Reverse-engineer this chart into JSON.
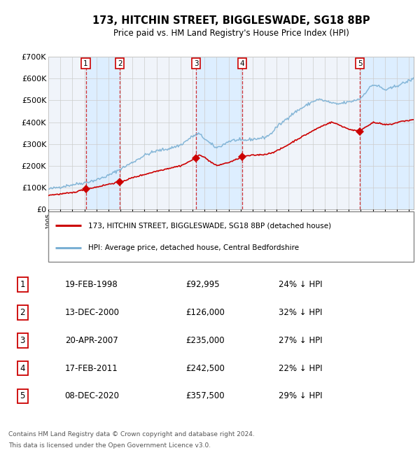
{
  "title": "173, HITCHIN STREET, BIGGLESWADE, SG18 8BP",
  "subtitle": "Price paid vs. HM Land Registry's House Price Index (HPI)",
  "footer1": "Contains HM Land Registry data © Crown copyright and database right 2024.",
  "footer2": "This data is licensed under the Open Government Licence v3.0.",
  "legend_line1": "173, HITCHIN STREET, BIGGLESWADE, SG18 8BP (detached house)",
  "legend_line2": "HPI: Average price, detached house, Central Bedfordshire",
  "sales": [
    {
      "num": 1,
      "date": "19-FEB-1998",
      "price": 92995,
      "pct": "24% ↓ HPI",
      "year": 1998.12
    },
    {
      "num": 2,
      "date": "13-DEC-2000",
      "price": 126000,
      "pct": "32% ↓ HPI",
      "year": 2000.95
    },
    {
      "num": 3,
      "date": "20-APR-2007",
      "price": 235000,
      "pct": "27% ↓ HPI",
      "year": 2007.3
    },
    {
      "num": 4,
      "date": "17-FEB-2011",
      "price": 242500,
      "pct": "22% ↓ HPI",
      "year": 2011.12
    },
    {
      "num": 5,
      "date": "08-DEC-2020",
      "price": 357500,
      "pct": "29% ↓ HPI",
      "year": 2020.93
    }
  ],
  "hpi_line_color": "#7ab0d4",
  "sale_color": "#cc0000",
  "vline_color": "#cc0000",
  "shade_color": "#ddeeff",
  "ylim": [
    0,
    700000
  ],
  "xlim_start": 1995.0,
  "xlim_end": 2025.4,
  "yticks": [
    0,
    100000,
    200000,
    300000,
    400000,
    500000,
    600000,
    700000
  ],
  "ytick_labels": [
    "£0",
    "£100K",
    "£200K",
    "£300K",
    "£400K",
    "£500K",
    "£600K",
    "£700K"
  ],
  "background_color": "#ffffff",
  "chart_bg_color": "#f0f4fa",
  "hpi_anchors": [
    [
      1995.0,
      92000
    ],
    [
      1996.0,
      103000
    ],
    [
      1997.0,
      113000
    ],
    [
      1998.0,
      122000
    ],
    [
      1999.0,
      135000
    ],
    [
      2000.0,
      155000
    ],
    [
      2001.0,
      185000
    ],
    [
      2002.0,
      215000
    ],
    [
      2003.0,
      248000
    ],
    [
      2004.0,
      268000
    ],
    [
      2005.0,
      278000
    ],
    [
      2006.0,
      295000
    ],
    [
      2007.0,
      335000
    ],
    [
      2007.5,
      348000
    ],
    [
      2008.0,
      325000
    ],
    [
      2008.5,
      300000
    ],
    [
      2009.0,
      282000
    ],
    [
      2009.5,
      295000
    ],
    [
      2010.0,
      312000
    ],
    [
      2010.5,
      318000
    ],
    [
      2011.0,
      315000
    ],
    [
      2011.5,
      318000
    ],
    [
      2012.0,
      322000
    ],
    [
      2012.5,
      325000
    ],
    [
      2013.0,
      330000
    ],
    [
      2013.5,
      345000
    ],
    [
      2014.0,
      378000
    ],
    [
      2014.5,
      400000
    ],
    [
      2015.0,
      425000
    ],
    [
      2015.5,
      445000
    ],
    [
      2016.0,
      462000
    ],
    [
      2016.5,
      478000
    ],
    [
      2017.0,
      495000
    ],
    [
      2017.5,
      505000
    ],
    [
      2018.0,
      498000
    ],
    [
      2018.5,
      490000
    ],
    [
      2019.0,
      482000
    ],
    [
      2019.5,
      488000
    ],
    [
      2020.0,
      492000
    ],
    [
      2020.5,
      500000
    ],
    [
      2021.0,
      510000
    ],
    [
      2021.5,
      545000
    ],
    [
      2022.0,
      572000
    ],
    [
      2022.5,
      565000
    ],
    [
      2023.0,
      548000
    ],
    [
      2023.5,
      555000
    ],
    [
      2024.0,
      568000
    ],
    [
      2024.5,
      578000
    ],
    [
      2025.0,
      590000
    ],
    [
      2025.4,
      600000
    ]
  ],
  "red_anchors": [
    [
      1995.0,
      65000
    ],
    [
      1996.0,
      70000
    ],
    [
      1997.0,
      76000
    ],
    [
      1998.12,
      92995
    ],
    [
      1999.0,
      102000
    ],
    [
      2000.0,
      115000
    ],
    [
      2000.95,
      126000
    ],
    [
      2001.5,
      135000
    ],
    [
      2002.0,
      145000
    ],
    [
      2003.0,
      160000
    ],
    [
      2004.0,
      175000
    ],
    [
      2005.0,
      188000
    ],
    [
      2006.0,
      200000
    ],
    [
      2006.5,
      212000
    ],
    [
      2007.0,
      228000
    ],
    [
      2007.3,
      235000
    ],
    [
      2007.6,
      252000
    ],
    [
      2008.0,
      238000
    ],
    [
      2008.5,
      218000
    ],
    [
      2009.0,
      200000
    ],
    [
      2009.5,
      208000
    ],
    [
      2010.0,
      215000
    ],
    [
      2010.5,
      225000
    ],
    [
      2011.12,
      242500
    ],
    [
      2011.5,
      245000
    ],
    [
      2012.0,
      248000
    ],
    [
      2012.5,
      250000
    ],
    [
      2013.0,
      252000
    ],
    [
      2013.5,
      258000
    ],
    [
      2014.0,
      268000
    ],
    [
      2014.5,
      282000
    ],
    [
      2015.0,
      298000
    ],
    [
      2015.5,
      315000
    ],
    [
      2016.0,
      330000
    ],
    [
      2016.5,
      345000
    ],
    [
      2017.0,
      360000
    ],
    [
      2017.5,
      375000
    ],
    [
      2018.0,
      388000
    ],
    [
      2018.3,
      395000
    ],
    [
      2018.6,
      400000
    ],
    [
      2019.0,
      392000
    ],
    [
      2019.5,
      380000
    ],
    [
      2020.0,
      368000
    ],
    [
      2020.93,
      357500
    ],
    [
      2021.0,
      362000
    ],
    [
      2021.3,
      375000
    ],
    [
      2021.8,
      392000
    ],
    [
      2022.0,
      398000
    ],
    [
      2022.5,
      395000
    ],
    [
      2023.0,
      388000
    ],
    [
      2023.5,
      390000
    ],
    [
      2024.0,
      398000
    ],
    [
      2024.5,
      405000
    ],
    [
      2025.0,
      408000
    ],
    [
      2025.4,
      412000
    ]
  ]
}
